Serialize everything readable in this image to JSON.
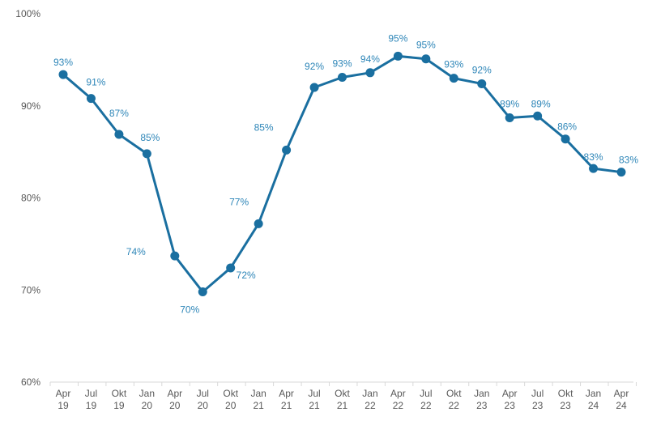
{
  "chart_data": {
    "type": "line",
    "title": "",
    "xlabel": "",
    "ylabel": "",
    "ylim": [
      60,
      100
    ],
    "yticks": [
      "60%",
      "70%",
      "80%",
      "90%",
      "100%"
    ],
    "grid": false,
    "categories": [
      [
        "Apr",
        "19"
      ],
      [
        "Jul",
        "19"
      ],
      [
        "Okt",
        "19"
      ],
      [
        "Jan",
        "20"
      ],
      [
        "Apr",
        "20"
      ],
      [
        "Jul",
        "20"
      ],
      [
        "Okt",
        "20"
      ],
      [
        "Jan",
        "21"
      ],
      [
        "Apr",
        "21"
      ],
      [
        "Jul",
        "21"
      ],
      [
        "Okt",
        "21"
      ],
      [
        "Jan",
        "22"
      ],
      [
        "Apr",
        "22"
      ],
      [
        "Jul",
        "22"
      ],
      [
        "Okt",
        "22"
      ],
      [
        "Jan",
        "23"
      ],
      [
        "Apr",
        "23"
      ],
      [
        "Jul",
        "23"
      ],
      [
        "Okt",
        "23"
      ],
      [
        "Jan",
        "24"
      ],
      [
        "Apr",
        "24"
      ]
    ],
    "series": [
      {
        "color": "#1a6fa0",
        "label_color": "#2e86b8",
        "values": [
          93.4,
          90.8,
          86.9,
          84.8,
          73.7,
          69.8,
          72.4,
          77.2,
          85.2,
          92.0,
          93.1,
          93.6,
          95.4,
          95.1,
          93.0,
          92.4,
          88.7,
          88.9,
          86.4,
          83.2,
          82.8
        ],
        "data_labels": [
          "93%",
          "91%",
          "87%",
          "85%",
          "74%",
          "70%",
          "72%",
          "77%",
          "85%",
          "92%",
          "93%",
          "94%",
          "95%",
          "95%",
          "93%",
          "92%",
          "89%",
          "89%",
          "86%",
          "83%",
          "83%"
        ]
      }
    ]
  }
}
